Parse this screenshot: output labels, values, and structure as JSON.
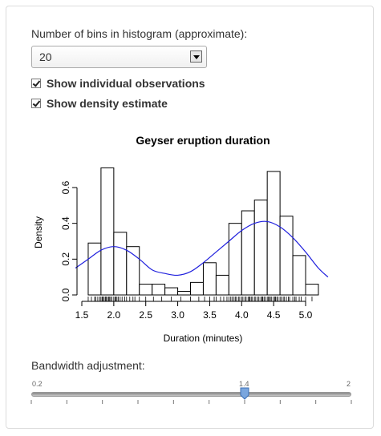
{
  "bins": {
    "label": "Number of bins in histogram (approximate):",
    "selected": "20",
    "icon": "dropdown-arrow-icon"
  },
  "options": [
    {
      "label": "Show individual observations",
      "checked": true
    },
    {
      "label": "Show density estimate",
      "checked": true
    }
  ],
  "chart_data": {
    "type": "histogram",
    "title": "Geyser eruption duration",
    "xlabel": "Duration (minutes)",
    "ylabel": "Density",
    "xlim": [
      1.4,
      5.4
    ],
    "ylim": [
      0,
      0.72
    ],
    "xticks": [
      "1.5",
      "2.0",
      "2.5",
      "3.0",
      "3.5",
      "4.0",
      "4.5",
      "5.0"
    ],
    "yticks": [
      "0.0",
      "0.2",
      "0.4",
      "0.6"
    ],
    "bin_width": 0.2,
    "bin_starts": [
      1.6,
      1.8,
      2.0,
      2.2,
      2.4,
      2.6,
      2.8,
      3.0,
      3.2,
      3.4,
      3.6,
      3.8,
      4.0,
      4.2,
      4.4,
      4.6,
      4.8,
      5.0
    ],
    "bin_density": [
      0.29,
      0.71,
      0.35,
      0.27,
      0.06,
      0.06,
      0.04,
      0.02,
      0.07,
      0.18,
      0.11,
      0.4,
      0.47,
      0.53,
      0.69,
      0.44,
      0.22,
      0.06
    ],
    "density_curve": {
      "x": [
        1.4,
        1.6,
        1.8,
        2.0,
        2.2,
        2.4,
        2.6,
        2.8,
        3.0,
        3.2,
        3.4,
        3.6,
        3.8,
        4.0,
        4.2,
        4.4,
        4.6,
        4.8,
        5.0,
        5.2,
        5.35
      ],
      "y": [
        0.15,
        0.2,
        0.25,
        0.27,
        0.25,
        0.2,
        0.14,
        0.12,
        0.11,
        0.13,
        0.18,
        0.24,
        0.3,
        0.36,
        0.4,
        0.41,
        0.38,
        0.32,
        0.24,
        0.15,
        0.1
      ]
    },
    "rug_note": "individual observations shown as rug ticks",
    "rug": [
      1.6,
      1.65,
      1.7,
      1.72,
      1.75,
      1.78,
      1.8,
      1.82,
      1.83,
      1.85,
      1.87,
      1.88,
      1.9,
      1.92,
      1.93,
      1.95,
      1.97,
      2.0,
      2.02,
      2.03,
      2.05,
      2.07,
      2.1,
      2.13,
      2.17,
      2.2,
      2.25,
      2.3,
      2.33,
      2.4,
      2.5,
      2.62,
      2.75,
      2.9,
      3.05,
      3.2,
      3.33,
      3.42,
      3.5,
      3.57,
      3.6,
      3.67,
      3.72,
      3.77,
      3.8,
      3.83,
      3.85,
      3.88,
      3.9,
      3.92,
      3.95,
      3.97,
      4.0,
      4.02,
      4.05,
      4.07,
      4.1,
      4.12,
      4.13,
      4.15,
      4.17,
      4.2,
      4.22,
      4.25,
      4.27,
      4.3,
      4.32,
      4.33,
      4.35,
      4.37,
      4.4,
      4.42,
      4.43,
      4.45,
      4.47,
      4.5,
      4.52,
      4.53,
      4.55,
      4.57,
      4.6,
      4.62,
      4.65,
      4.67,
      4.7,
      4.73,
      4.75,
      4.8,
      4.83,
      4.85,
      4.9,
      4.93,
      5.0,
      5.1
    ]
  },
  "bandwidth": {
    "label": "Bandwidth adjustment:",
    "min": "0.2",
    "max": "2",
    "value": "1.4",
    "fraction": 0.6667
  }
}
